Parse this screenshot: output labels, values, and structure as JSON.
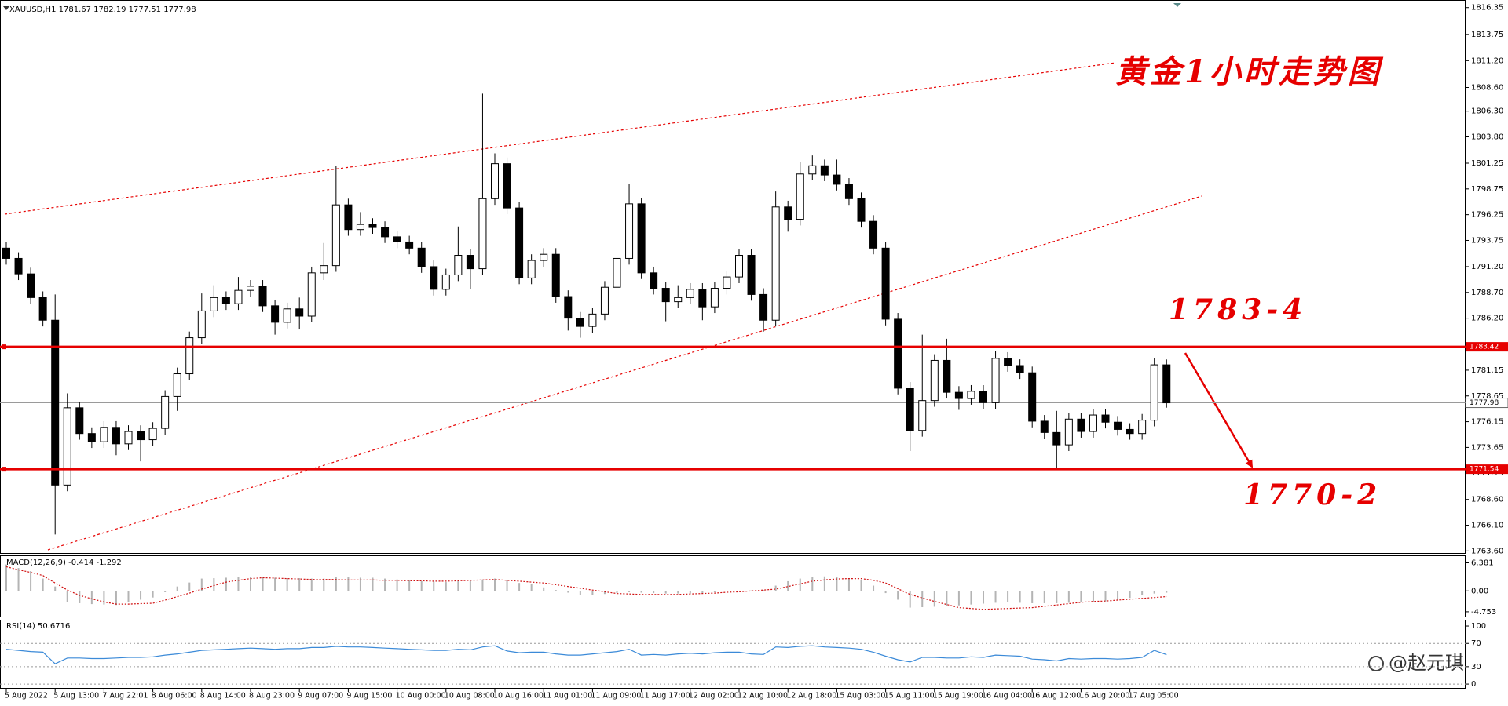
{
  "watermark": "@赵元琪",
  "chart_data": [
    {
      "type": "candlestick",
      "title": "XAUUSD,H1  1781.67 1782.19 1777.51 1777.98",
      "up_color": "#ffffff",
      "down_color": "#000000",
      "edge_color": "#000000",
      "categories": [
        "5 Aug 2022",
        null,
        null,
        null,
        "5 Aug 13:00",
        null,
        null,
        null,
        "7 Aug 22:01",
        null,
        null,
        null,
        "8 Aug 06:00",
        null,
        null,
        null,
        "8 Aug 14:00",
        null,
        null,
        null,
        "8 Aug 23:00",
        null,
        null,
        null,
        "9 Aug 07:00",
        null,
        null,
        null,
        "9 Aug 15:00",
        null,
        null,
        null,
        "10 Aug 00:00",
        null,
        null,
        null,
        "10 Aug 08:00",
        null,
        null,
        null,
        "10 Aug 16:00",
        null,
        null,
        null,
        "11 Aug 01:00",
        null,
        null,
        null,
        "11 Aug 09:00",
        null,
        null,
        null,
        "11 Aug 17:00",
        null,
        null,
        null,
        "12 Aug 02:00",
        null,
        null,
        null,
        "12 Aug 10:00",
        null,
        null,
        null,
        "12 Aug 18:00",
        null,
        null,
        null,
        "15 Aug 03:00",
        null,
        null,
        null,
        "15 Aug 11:00",
        null,
        null,
        null,
        "15 Aug 19:00",
        null,
        null,
        null,
        "16 Aug 04:00",
        null,
        null,
        null,
        "16 Aug 12:00",
        null,
        null,
        null,
        "16 Aug 20:00",
        null,
        null,
        null,
        "17 Aug 05:00",
        null,
        null,
        null
      ],
      "ohlc": [
        [
          1793.0,
          1793.6,
          1791.4,
          1792.0
        ],
        [
          1792.0,
          1792.6,
          1789.9,
          1790.5
        ],
        [
          1790.5,
          1791.1,
          1787.6,
          1788.2
        ],
        [
          1788.2,
          1788.8,
          1785.4,
          1786.0
        ],
        [
          1786.0,
          1788.5,
          1765.2,
          1770.0
        ],
        [
          1770.0,
          1778.9,
          1769.4,
          1777.5
        ],
        [
          1777.5,
          1778.1,
          1774.4,
          1775.0
        ],
        [
          1775.0,
          1775.6,
          1773.6,
          1774.2
        ],
        [
          1774.2,
          1776.2,
          1773.6,
          1775.6
        ],
        [
          1775.6,
          1776.2,
          1772.9,
          1774.0
        ],
        [
          1774.0,
          1775.8,
          1773.4,
          1775.2
        ],
        [
          1775.2,
          1775.8,
          1772.3,
          1774.4
        ],
        [
          1774.4,
          1776.1,
          1773.8,
          1775.5
        ],
        [
          1775.5,
          1779.2,
          1774.9,
          1778.6
        ],
        [
          1778.6,
          1781.4,
          1777.2,
          1780.8
        ],
        [
          1780.8,
          1784.9,
          1780.2,
          1784.3
        ],
        [
          1784.3,
          1788.6,
          1783.7,
          1786.9
        ],
        [
          1786.9,
          1789.4,
          1786.3,
          1788.2
        ],
        [
          1788.2,
          1788.8,
          1787.0,
          1787.6
        ],
        [
          1787.6,
          1790.2,
          1787.0,
          1788.9
        ],
        [
          1788.9,
          1789.9,
          1788.3,
          1789.3
        ],
        [
          1789.3,
          1789.9,
          1786.8,
          1787.4
        ],
        [
          1787.4,
          1788.0,
          1784.6,
          1785.8
        ],
        [
          1785.8,
          1787.7,
          1785.2,
          1787.1
        ],
        [
          1787.1,
          1788.2,
          1785.1,
          1786.4
        ],
        [
          1786.4,
          1791.2,
          1785.8,
          1790.6
        ],
        [
          1790.6,
          1793.5,
          1789.9,
          1791.3
        ],
        [
          1791.3,
          1801.0,
          1790.7,
          1797.2
        ],
        [
          1797.2,
          1797.8,
          1794.2,
          1794.8
        ],
        [
          1794.8,
          1796.5,
          1794.2,
          1795.3
        ],
        [
          1795.3,
          1795.9,
          1794.4,
          1795.0
        ],
        [
          1795.0,
          1795.6,
          1793.5,
          1794.1
        ],
        [
          1794.1,
          1794.7,
          1793.0,
          1793.6
        ],
        [
          1793.6,
          1794.2,
          1792.4,
          1793.0
        ],
        [
          1793.0,
          1793.6,
          1790.6,
          1791.2
        ],
        [
          1791.2,
          1791.8,
          1788.4,
          1789.0
        ],
        [
          1789.0,
          1791.0,
          1788.4,
          1790.4
        ],
        [
          1790.4,
          1795.1,
          1789.8,
          1792.3
        ],
        [
          1792.3,
          1792.9,
          1789.0,
          1791.0
        ],
        [
          1791.0,
          1808.0,
          1790.4,
          1797.8
        ],
        [
          1797.8,
          1802.2,
          1797.2,
          1801.2
        ],
        [
          1801.2,
          1801.8,
          1796.3,
          1796.9
        ],
        [
          1796.9,
          1797.5,
          1789.5,
          1790.1
        ],
        [
          1790.1,
          1792.4,
          1789.5,
          1791.8
        ],
        [
          1791.8,
          1793.0,
          1791.2,
          1792.4
        ],
        [
          1792.4,
          1793.0,
          1787.7,
          1788.3
        ],
        [
          1788.3,
          1788.9,
          1785.0,
          1786.2
        ],
        [
          1786.2,
          1786.8,
          1784.3,
          1785.4
        ],
        [
          1785.4,
          1787.2,
          1784.8,
          1786.6
        ],
        [
          1786.6,
          1789.8,
          1786.0,
          1789.2
        ],
        [
          1789.2,
          1792.6,
          1788.6,
          1792.0
        ],
        [
          1792.0,
          1799.2,
          1791.4,
          1797.3
        ],
        [
          1797.3,
          1797.9,
          1790.0,
          1790.6
        ],
        [
          1790.6,
          1791.2,
          1788.5,
          1789.1
        ],
        [
          1789.1,
          1789.7,
          1785.9,
          1787.8
        ],
        [
          1787.8,
          1789.4,
          1787.2,
          1788.2
        ],
        [
          1788.2,
          1789.6,
          1787.6,
          1789.0
        ],
        [
          1789.0,
          1789.6,
          1786.0,
          1787.3
        ],
        [
          1787.3,
          1789.7,
          1786.7,
          1789.1
        ],
        [
          1789.1,
          1790.8,
          1788.5,
          1790.2
        ],
        [
          1790.2,
          1792.9,
          1789.6,
          1792.3
        ],
        [
          1792.3,
          1792.9,
          1787.9,
          1788.5
        ],
        [
          1788.5,
          1789.1,
          1784.9,
          1786.0
        ],
        [
          1786.0,
          1798.5,
          1785.4,
          1797.0
        ],
        [
          1797.0,
          1797.6,
          1794.6,
          1795.8
        ],
        [
          1795.8,
          1801.4,
          1795.2,
          1800.2
        ],
        [
          1800.2,
          1802.0,
          1799.6,
          1801.0
        ],
        [
          1801.0,
          1801.6,
          1799.5,
          1800.1
        ],
        [
          1800.1,
          1801.6,
          1798.6,
          1799.2
        ],
        [
          1799.2,
          1799.8,
          1797.2,
          1797.8
        ],
        [
          1797.8,
          1798.4,
          1795.0,
          1795.6
        ],
        [
          1795.6,
          1796.2,
          1792.4,
          1793.0
        ],
        [
          1793.0,
          1793.6,
          1785.5,
          1786.1
        ],
        [
          1786.1,
          1786.7,
          1778.8,
          1779.4
        ],
        [
          1779.4,
          1780.0,
          1773.3,
          1775.3
        ],
        [
          1775.3,
          1784.6,
          1774.7,
          1778.2
        ],
        [
          1778.2,
          1782.7,
          1777.6,
          1782.1
        ],
        [
          1782.1,
          1784.2,
          1778.4,
          1779.0
        ],
        [
          1779.0,
          1779.6,
          1777.3,
          1778.4
        ],
        [
          1778.4,
          1779.7,
          1777.8,
          1779.1
        ],
        [
          1779.1,
          1779.7,
          1777.4,
          1778.0
        ],
        [
          1778.0,
          1783.0,
          1777.4,
          1782.3
        ],
        [
          1782.3,
          1782.9,
          1781.0,
          1781.6
        ],
        [
          1781.6,
          1782.2,
          1780.3,
          1780.9
        ],
        [
          1780.9,
          1781.5,
          1775.6,
          1776.2
        ],
        [
          1776.2,
          1776.8,
          1774.5,
          1775.1
        ],
        [
          1775.1,
          1777.2,
          1771.6,
          1773.9
        ],
        [
          1773.9,
          1777.0,
          1773.3,
          1776.4
        ],
        [
          1776.4,
          1777.0,
          1774.6,
          1775.2
        ],
        [
          1775.2,
          1777.4,
          1774.6,
          1776.8
        ],
        [
          1776.8,
          1777.4,
          1775.5,
          1776.1
        ],
        [
          1776.1,
          1776.7,
          1774.8,
          1775.4
        ],
        [
          1775.4,
          1776.0,
          1774.4,
          1775.0
        ],
        [
          1775.0,
          1776.9,
          1774.4,
          1776.3
        ],
        [
          1776.3,
          1782.3,
          1775.7,
          1781.67
        ],
        [
          1781.67,
          1782.19,
          1777.51,
          1777.98
        ]
      ],
      "ylim": [
        1763.4,
        1816.9
      ],
      "yticks": [
        {
          "value": 1816.35,
          "label": "1816.35"
        },
        {
          "value": 1813.75,
          "label": "1813.75"
        },
        {
          "value": 1811.2,
          "label": "1811.20"
        },
        {
          "value": 1808.6,
          "label": "1808.60"
        },
        {
          "value": 1806.3,
          "label": "1806.30"
        },
        {
          "value": 1803.8,
          "label": "1803.80"
        },
        {
          "value": 1801.25,
          "label": "1801.25"
        },
        {
          "value": 1798.75,
          "label": "1798.75"
        },
        {
          "value": 1796.25,
          "label": "1796.25"
        },
        {
          "value": 1793.75,
          "label": "1793.75"
        },
        {
          "value": 1791.2,
          "label": "1791.20"
        },
        {
          "value": 1788.7,
          "label": "1788.70"
        },
        {
          "value": 1786.2,
          "label": "1786.20"
        },
        {
          "value": 1781.15,
          "label": "1781.15"
        },
        {
          "value": 1778.65,
          "label": "1778.65"
        },
        {
          "value": 1776.15,
          "label": "1776.15"
        },
        {
          "value": 1773.65,
          "label": "1773.65"
        },
        {
          "value": 1771.15,
          "label": "1771.15"
        },
        {
          "value": 1768.6,
          "label": "1768.60"
        },
        {
          "value": 1766.1,
          "label": "1766.10"
        },
        {
          "value": 1763.6,
          "label": "1763.60"
        }
      ],
      "price_lines": [
        {
          "value": 1783.42,
          "color": "#e60000"
        },
        {
          "value": 1771.54,
          "color": "#e60000"
        }
      ],
      "current_price": 1777.98,
      "current_color": "#9a9a9a",
      "annotations": [
        "黄金1小时走势图",
        "1783-4",
        "1770-2"
      ],
      "annotation_color": "#e60000"
    },
    {
      "type": "macd",
      "title": "MACD(12,26,9) -0.414 -1.292",
      "color": "#b4b4b4",
      "signal_color": "#d01010",
      "values": [
        6.0,
        5.2,
        4.5,
        2.8,
        1.0,
        -2.5,
        -2.8,
        -3.0,
        -3.1,
        -3.2,
        -2.6,
        -2.0,
        -1.5,
        -0.3,
        1.0,
        1.9,
        2.8,
        2.9,
        3.0,
        3.1,
        3.2,
        3.1,
        3.0,
        2.9,
        2.9,
        2.8,
        2.8,
        3.2,
        3.1,
        3.0,
        3.0,
        2.8,
        2.6,
        2.4,
        2.2,
        2.1,
        2.0,
        2.2,
        2.3,
        2.6,
        2.8,
        2.4,
        1.8,
        1.5,
        0.8,
        0.2,
        -0.4,
        -1.0,
        -0.9,
        -0.7,
        -0.5,
        -0.3,
        -0.4,
        -0.5,
        -0.6,
        -0.6,
        -0.6,
        -0.5,
        -0.3,
        -0.1,
        0.0,
        0.1,
        0.2,
        1.2,
        2.2,
        2.8,
        3.1,
        3.3,
        3.1,
        2.8,
        2.5,
        1.2,
        -0.5,
        -2.0,
        -3.8,
        -3.7,
        -3.6,
        -3.4,
        -3.3,
        -3.1,
        -2.9,
        -2.7,
        -2.6,
        -2.7,
        -2.8,
        -2.8,
        -2.8,
        -2.7,
        -2.6,
        -2.5,
        -2.4,
        -2.0,
        -1.6,
        -1.0,
        -0.6,
        -0.414
      ],
      "signal": [
        5.5,
        4.8,
        4.2,
        3.5,
        1.8,
        0.2,
        -1.0,
        -1.8,
        -2.5,
        -3.0,
        -3.0,
        -2.9,
        -2.8,
        -2.1,
        -1.3,
        -0.5,
        0.4,
        1.2,
        2.0,
        2.4,
        2.8,
        3.0,
        2.9,
        2.8,
        2.7,
        2.6,
        2.6,
        2.6,
        2.5,
        2.5,
        2.5,
        2.4,
        2.4,
        2.3,
        2.3,
        2.2,
        2.2,
        2.3,
        2.4,
        2.5,
        2.6,
        2.4,
        2.2,
        2.0,
        1.8,
        1.4,
        1.0,
        0.6,
        0.2,
        -0.2,
        -0.6,
        -0.7,
        -0.8,
        -0.8,
        -0.8,
        -0.8,
        -0.7,
        -0.6,
        -0.5,
        -0.3,
        -0.2,
        0.0,
        0.2,
        0.4,
        1.0,
        1.6,
        2.2,
        2.5,
        2.7,
        2.8,
        2.8,
        2.4,
        1.8,
        0.5,
        -0.8,
        -1.6,
        -2.4,
        -3.1,
        -3.8,
        -4.0,
        -4.2,
        -4.1,
        -4.0,
        -3.9,
        -3.8,
        -3.5,
        -3.2,
        -2.9,
        -2.6,
        -2.4,
        -2.3,
        -2.1,
        -1.9,
        -1.7,
        -1.5,
        -1.292
      ],
      "ylim": [
        -5.84,
        7.9
      ],
      "yticks": [
        6.381,
        {
          "value": 0,
          "label": "0.00"
        },
        -4.753
      ]
    },
    {
      "type": "line",
      "title": "RSI(14) 50.6716",
      "color": "#3b8ad8",
      "grid": true,
      "values": [
        60,
        58,
        56,
        55,
        35,
        45,
        45,
        44,
        44,
        45,
        46,
        46,
        47,
        50,
        52,
        55,
        58,
        59,
        60,
        61,
        62,
        61,
        60,
        61,
        61,
        63,
        63,
        65,
        64,
        64,
        63,
        62,
        61,
        60,
        59,
        58,
        58,
        60,
        59,
        64,
        66,
        57,
        54,
        55,
        55,
        52,
        50,
        50,
        52,
        54,
        56,
        60,
        50,
        51,
        50,
        52,
        53,
        52,
        54,
        55,
        55,
        52,
        51,
        64,
        63,
        65,
        66,
        64,
        63,
        62,
        60,
        55,
        48,
        42,
        38,
        46,
        46,
        45,
        45,
        47,
        46,
        50,
        49,
        48,
        43,
        42,
        40,
        44,
        43,
        44,
        44,
        43,
        44,
        46,
        58,
        50.6716
      ],
      "ylim": [
        -8,
        109.5
      ],
      "yticks": [
        100,
        70,
        30,
        0
      ]
    }
  ]
}
